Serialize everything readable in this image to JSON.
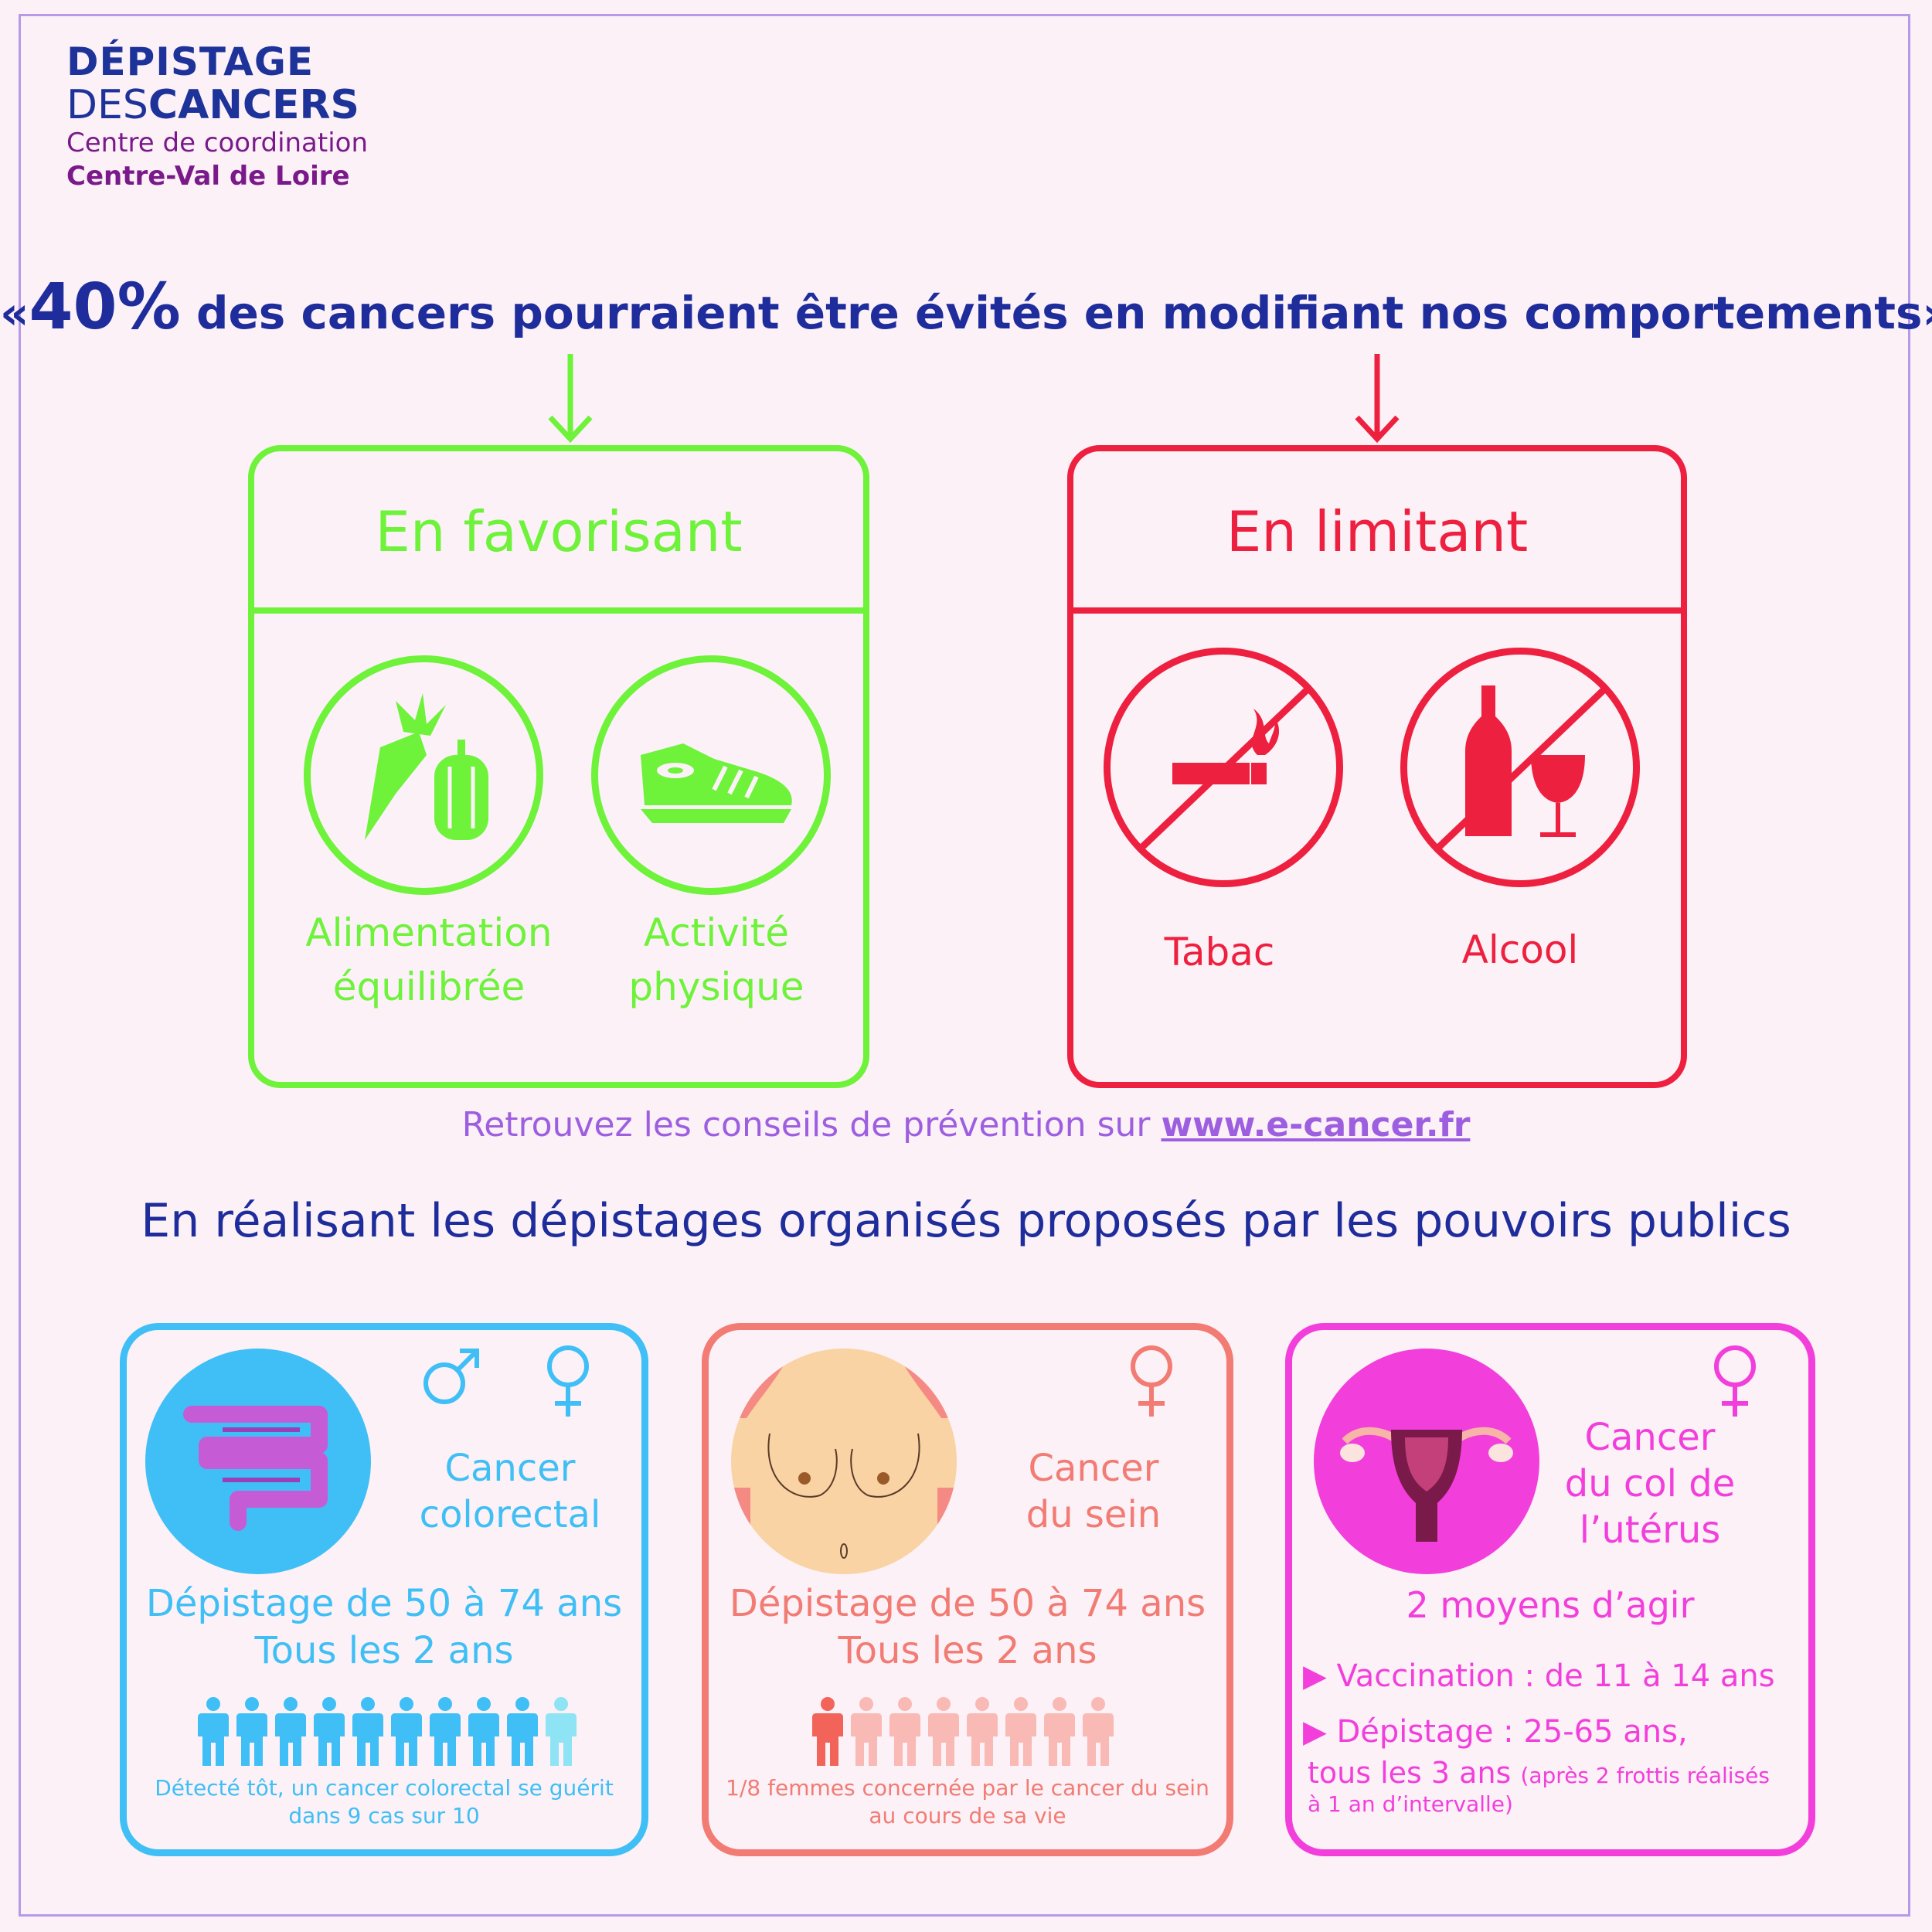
{
  "logo": {
    "line1": "DÉPISTAGE",
    "line2_a": "DES",
    "line2_b": "CANCERS",
    "line3": "Centre de coordination",
    "line4": "Centre-Val de Loire"
  },
  "headline": {
    "open": "«",
    "percent": "40%",
    "rest": " des cancers pourraient être évités en modifiant nos comportements»"
  },
  "favor": {
    "title": "En favorisant",
    "items": [
      {
        "line1": "Alimentation",
        "line2": "équilibrée",
        "icon": "vegetables-icon"
      },
      {
        "line1": "Activité",
        "line2": "physique",
        "icon": "sneaker-icon"
      }
    ]
  },
  "limit": {
    "title": "En limitant",
    "items": [
      {
        "label": "Tabac",
        "icon": "no-smoking-icon"
      },
      {
        "label": "Alcool",
        "icon": "no-alcohol-icon"
      }
    ]
  },
  "prevention": {
    "text": "Retrouvez les conseils de prévention sur ",
    "link": "www.e-cancer.fr"
  },
  "screening_heading": "En réalisant les dépistages organisés proposés par les pouvoirs publics",
  "cards": {
    "colorectal": {
      "title1": "Cancer",
      "title2": "colorectal",
      "age": "Dépistage de 50 à 74 ans",
      "freq": "Tous les 2 ans",
      "people_total": 10,
      "people_highlight": 9,
      "note1": "Détecté tôt, un cancer colorectal se guérit",
      "note2": "dans 9 cas sur 10"
    },
    "breast": {
      "title1": "Cancer",
      "title2": "du sein",
      "age": "Dépistage de 50  à 74 ans",
      "freq": "Tous les 2 ans",
      "people_total": 8,
      "people_highlight": 1,
      "note1": "1/8 femmes concernée par le cancer du sein",
      "note2": "au cours de sa vie"
    },
    "cervix": {
      "title1": "Cancer",
      "title2": "du col de",
      "title3": "l’utérus",
      "means": "2 moyens d’agir",
      "vacc": "Vaccination :  de 11 à 14 ans",
      "screen": "Dépistage : 25-65 ans,",
      "screen2": "tous les 3 ans",
      "screen_note1": "(après 2 frottis réalisés",
      "screen_note2": "à 1 an d’intervalle)"
    }
  },
  "colors": {
    "green": "#6ef23a",
    "red": "#ee2040",
    "blue": "#3fbff5",
    "salmon": "#f27b73",
    "pink": "#f23fdc",
    "navy": "#1e2d9b"
  }
}
